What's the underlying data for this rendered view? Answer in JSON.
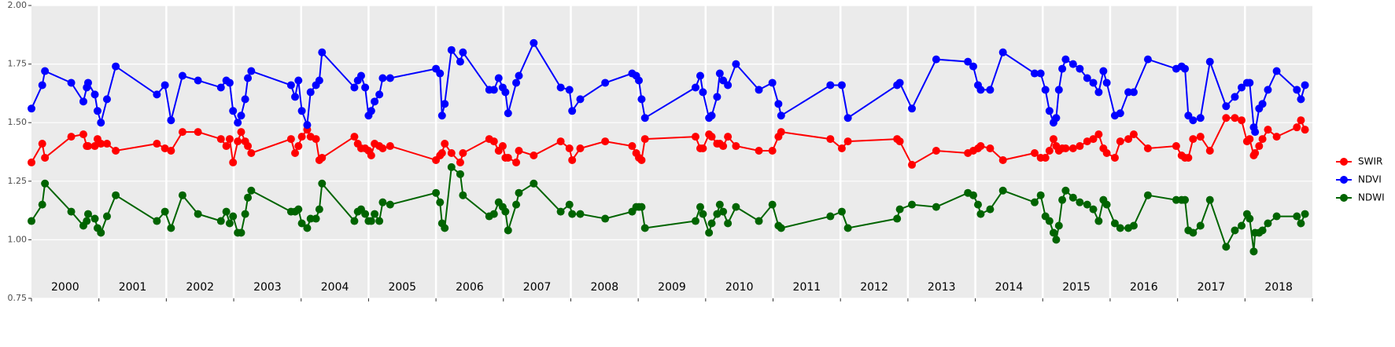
{
  "chart_data": {
    "type": "line",
    "x": [
      2000.0,
      2000.16,
      2000.2,
      2000.59,
      2000.77,
      2000.82,
      2000.84,
      2000.94,
      2000.98,
      2001.03,
      2001.12,
      2001.25,
      2001.86,
      2001.98,
      2002.07,
      2002.24,
      2002.47,
      2002.81,
      2002.89,
      2002.94,
      2002.99,
      2003.06,
      2003.11,
      2003.17,
      2003.21,
      2003.26,
      2003.85,
      2003.91,
      2003.96,
      2004.01,
      2004.09,
      2004.14,
      2004.22,
      2004.27,
      2004.31,
      2004.79,
      2004.84,
      2004.89,
      2004.95,
      2005.0,
      2005.04,
      2005.09,
      2005.16,
      2005.21,
      2005.32,
      2006.0,
      2006.06,
      2006.09,
      2006.13,
      2006.23,
      2006.36,
      2006.4,
      2006.79,
      2006.86,
      2006.93,
      2006.99,
      2007.03,
      2007.07,
      2007.19,
      2007.23,
      2007.45,
      2007.85,
      2007.98,
      2008.02,
      2008.14,
      2008.51,
      2008.91,
      2008.97,
      2009.01,
      2009.05,
      2009.1,
      2009.85,
      2009.92,
      2009.96,
      2010.05,
      2010.09,
      2010.17,
      2010.21,
      2010.26,
      2010.33,
      2010.45,
      2010.79,
      2010.99,
      2011.08,
      2011.12,
      2011.85,
      2012.02,
      2012.11,
      2012.84,
      2012.88,
      2013.06,
      2013.42,
      2013.89,
      2013.97,
      2014.04,
      2014.08,
      2014.22,
      2014.41,
      2014.88,
      2014.97,
      2015.04,
      2015.1,
      2015.16,
      2015.2,
      2015.24,
      2015.29,
      2015.34,
      2015.45,
      2015.55,
      2015.66,
      2015.75,
      2015.83,
      2015.9,
      2015.95,
      2016.07,
      2016.15,
      2016.27,
      2016.35,
      2016.56,
      2016.98,
      2017.06,
      2017.11,
      2017.16,
      2017.23,
      2017.34,
      2017.48,
      2017.72,
      2017.85,
      2017.95,
      2018.03,
      2018.07,
      2018.13,
      2018.15,
      2018.21,
      2018.26,
      2018.34,
      2018.47,
      2018.77,
      2018.83,
      2018.89
    ],
    "series": [
      {
        "name": "SWIR",
        "color": "#ff0000",
        "values": [
          1.33,
          1.41,
          1.35,
          1.44,
          1.45,
          1.4,
          1.4,
          1.4,
          1.43,
          1.41,
          1.41,
          1.38,
          1.41,
          1.39,
          1.38,
          1.46,
          1.46,
          1.43,
          1.4,
          1.43,
          1.33,
          1.42,
          1.46,
          1.42,
          1.4,
          1.37,
          1.43,
          1.37,
          1.4,
          1.44,
          1.47,
          1.44,
          1.43,
          1.34,
          1.35,
          1.44,
          1.41,
          1.39,
          1.39,
          1.38,
          1.36,
          1.41,
          1.4,
          1.39,
          1.4,
          1.34,
          1.36,
          1.37,
          1.41,
          1.37,
          1.33,
          1.37,
          1.43,
          1.42,
          1.38,
          1.4,
          1.35,
          1.35,
          1.33,
          1.38,
          1.36,
          1.42,
          1.39,
          1.34,
          1.39,
          1.42,
          1.4,
          1.37,
          1.35,
          1.34,
          1.43,
          1.44,
          1.39,
          1.39,
          1.45,
          1.44,
          1.41,
          1.41,
          1.4,
          1.44,
          1.4,
          1.38,
          1.38,
          1.44,
          1.46,
          1.43,
          1.39,
          1.42,
          1.43,
          1.42,
          1.32,
          1.38,
          1.37,
          1.38,
          1.39,
          1.4,
          1.39,
          1.34,
          1.37,
          1.35,
          1.35,
          1.38,
          1.43,
          1.4,
          1.38,
          1.39,
          1.39,
          1.39,
          1.4,
          1.42,
          1.43,
          1.45,
          1.39,
          1.37,
          1.35,
          1.42,
          1.43,
          1.45,
          1.39,
          1.4,
          1.36,
          1.35,
          1.35,
          1.43,
          1.44,
          1.38,
          1.52,
          1.52,
          1.51,
          1.42,
          1.43,
          1.36,
          1.37,
          1.4,
          1.43,
          1.47,
          1.44,
          1.48,
          1.51,
          1.47
        ]
      },
      {
        "name": "NDVI",
        "color": "#0000ff",
        "values": [
          1.56,
          1.66,
          1.72,
          1.67,
          1.59,
          1.65,
          1.67,
          1.62,
          1.55,
          1.5,
          1.6,
          1.74,
          1.62,
          1.66,
          1.51,
          1.7,
          1.68,
          1.65,
          1.68,
          1.67,
          1.55,
          1.5,
          1.53,
          1.6,
          1.69,
          1.72,
          1.66,
          1.61,
          1.68,
          1.55,
          1.49,
          1.63,
          1.66,
          1.68,
          1.8,
          1.65,
          1.68,
          1.7,
          1.65,
          1.53,
          1.55,
          1.59,
          1.62,
          1.69,
          1.69,
          1.73,
          1.71,
          1.53,
          1.58,
          1.81,
          1.76,
          1.8,
          1.64,
          1.64,
          1.69,
          1.65,
          1.63,
          1.54,
          1.67,
          1.7,
          1.84,
          1.65,
          1.64,
          1.55,
          1.6,
          1.67,
          1.71,
          1.7,
          1.68,
          1.6,
          1.52,
          1.65,
          1.7,
          1.63,
          1.52,
          1.53,
          1.61,
          1.71,
          1.68,
          1.66,
          1.75,
          1.64,
          1.67,
          1.58,
          1.53,
          1.66,
          1.66,
          1.52,
          1.66,
          1.67,
          1.56,
          1.77,
          1.76,
          1.74,
          1.66,
          1.64,
          1.64,
          1.8,
          1.71,
          1.71,
          1.64,
          1.55,
          1.5,
          1.52,
          1.64,
          1.73,
          1.77,
          1.75,
          1.73,
          1.69,
          1.67,
          1.63,
          1.72,
          1.67,
          1.53,
          1.54,
          1.63,
          1.63,
          1.77,
          1.73,
          1.74,
          1.73,
          1.53,
          1.51,
          1.52,
          1.76,
          1.57,
          1.61,
          1.65,
          1.67,
          1.67,
          1.48,
          1.46,
          1.56,
          1.58,
          1.64,
          1.72,
          1.64,
          1.6,
          1.66
        ]
      },
      {
        "name": "NDWI",
        "color": "#006400",
        "values": [
          1.08,
          1.15,
          1.24,
          1.12,
          1.06,
          1.08,
          1.11,
          1.09,
          1.05,
          1.03,
          1.1,
          1.19,
          1.08,
          1.12,
          1.05,
          1.19,
          1.11,
          1.08,
          1.12,
          1.07,
          1.1,
          1.03,
          1.03,
          1.11,
          1.18,
          1.21,
          1.12,
          1.12,
          1.13,
          1.07,
          1.05,
          1.09,
          1.09,
          1.13,
          1.24,
          1.08,
          1.12,
          1.13,
          1.11,
          1.08,
          1.08,
          1.11,
          1.08,
          1.16,
          1.15,
          1.2,
          1.16,
          1.07,
          1.05,
          1.31,
          1.28,
          1.19,
          1.1,
          1.11,
          1.16,
          1.14,
          1.12,
          1.04,
          1.15,
          1.2,
          1.24,
          1.12,
          1.15,
          1.11,
          1.11,
          1.09,
          1.12,
          1.14,
          1.14,
          1.14,
          1.05,
          1.08,
          1.14,
          1.11,
          1.03,
          1.07,
          1.11,
          1.15,
          1.12,
          1.07,
          1.14,
          1.08,
          1.15,
          1.06,
          1.05,
          1.1,
          1.12,
          1.05,
          1.09,
          1.13,
          1.15,
          1.14,
          1.2,
          1.19,
          1.15,
          1.11,
          1.13,
          1.21,
          1.16,
          1.19,
          1.1,
          1.08,
          1.03,
          1.0,
          1.06,
          1.17,
          1.21,
          1.18,
          1.16,
          1.15,
          1.13,
          1.08,
          1.17,
          1.15,
          1.07,
          1.05,
          1.05,
          1.06,
          1.19,
          1.17,
          1.17,
          1.17,
          1.04,
          1.03,
          1.06,
          1.17,
          0.97,
          1.04,
          1.06,
          1.11,
          1.09,
          0.95,
          1.03,
          1.03,
          1.04,
          1.07,
          1.1,
          1.1,
          1.07,
          1.11
        ]
      }
    ],
    "xlim": [
      2000,
      2019
    ],
    "xticks": [
      2000,
      2001,
      2002,
      2003,
      2004,
      2005,
      2006,
      2007,
      2008,
      2009,
      2010,
      2011,
      2012,
      2013,
      2014,
      2015,
      2016,
      2017,
      2018,
      2019
    ],
    "year_labels": [
      "2000",
      "2001",
      "2002",
      "2003",
      "2004",
      "2005",
      "2006",
      "2007",
      "2008",
      "2009",
      "2010",
      "2011",
      "2012",
      "2013",
      "2014",
      "2015",
      "2016",
      "2017",
      "2018"
    ],
    "ylim": [
      0.75,
      2.0
    ],
    "yticks": [
      {
        "value": 0.75,
        "label": "0.75"
      },
      {
        "value": 1.0,
        "label": "1.00"
      },
      {
        "value": 1.25,
        "label": "1.25"
      },
      {
        "value": 1.5,
        "label": "1.50"
      },
      {
        "value": 1.75,
        "label": "1.75"
      },
      {
        "value": 2.0,
        "label": "2.00"
      }
    ],
    "grid": true,
    "legend": "right"
  }
}
